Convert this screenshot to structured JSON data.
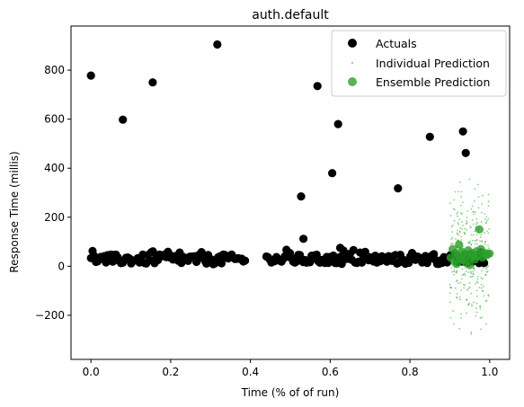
{
  "chart_data": {
    "type": "scatter",
    "title": "auth.default",
    "xlabel": "Time (% of of run)",
    "ylabel": "Response Time (millis)",
    "xlim": [
      -0.05,
      1.05
    ],
    "ylim": [
      -380,
      980
    ],
    "xticks": [
      0.0,
      0.2,
      0.4,
      0.6,
      0.8,
      1.0
    ],
    "xtick_labels": [
      "0.0",
      "0.2",
      "0.4",
      "0.6",
      "0.8",
      "1.0"
    ],
    "yticks": [
      -200,
      0,
      200,
      400,
      600,
      800
    ],
    "ytick_labels": [
      "−200",
      "0",
      "200",
      "400",
      "600",
      "800"
    ],
    "grid": false,
    "legend_position": "top-right",
    "colors": {
      "actuals": "#000000",
      "individual": "#2ca02c",
      "ensemble": "#2ca02c"
    },
    "series": [
      {
        "name": "Actuals",
        "outliers": [
          [
            0.0,
            778
          ],
          [
            0.08,
            598
          ],
          [
            0.155,
            750
          ],
          [
            0.317,
            905
          ],
          [
            0.527,
            285
          ],
          [
            0.533,
            112
          ],
          [
            0.568,
            735
          ],
          [
            0.605,
            380
          ],
          [
            0.62,
            580
          ],
          [
            0.625,
            75
          ],
          [
            0.77,
            318
          ],
          [
            0.85,
            528
          ],
          [
            0.933,
            550
          ],
          [
            0.94,
            462
          ]
        ],
        "baseline": {
          "segments": [
            [
              0.0,
              0.39
            ],
            [
              0.44,
              0.99
            ]
          ],
          "spacing": 0.0042,
          "typical_range": [
            5,
            50
          ]
        }
      },
      {
        "name": "Individual Prediction",
        "x_range": [
          0.9,
          1.0
        ],
        "y_range": [
          -310,
          420
        ],
        "count": 320
      },
      {
        "name": "Ensemble Prediction",
        "points": [
          [
            0.902,
            35
          ],
          [
            0.907,
            70
          ],
          [
            0.911,
            20
          ],
          [
            0.914,
            55
          ],
          [
            0.918,
            10
          ],
          [
            0.92,
            45
          ],
          [
            0.923,
            88
          ],
          [
            0.926,
            30
          ],
          [
            0.93,
            60
          ],
          [
            0.933,
            25
          ],
          [
            0.936,
            50
          ],
          [
            0.94,
            15
          ],
          [
            0.943,
            40
          ],
          [
            0.946,
            65
          ],
          [
            0.95,
            5
          ],
          [
            0.953,
            35
          ],
          [
            0.956,
            55
          ],
          [
            0.96,
            45
          ],
          [
            0.963,
            28
          ],
          [
            0.967,
            60
          ],
          [
            0.97,
            40
          ],
          [
            0.974,
            150
          ],
          [
            0.978,
            70
          ],
          [
            0.982,
            35
          ],
          [
            0.986,
            55
          ],
          [
            0.99,
            45
          ],
          [
            0.995,
            50
          ],
          [
            1.0,
            52
          ]
        ]
      }
    ]
  }
}
